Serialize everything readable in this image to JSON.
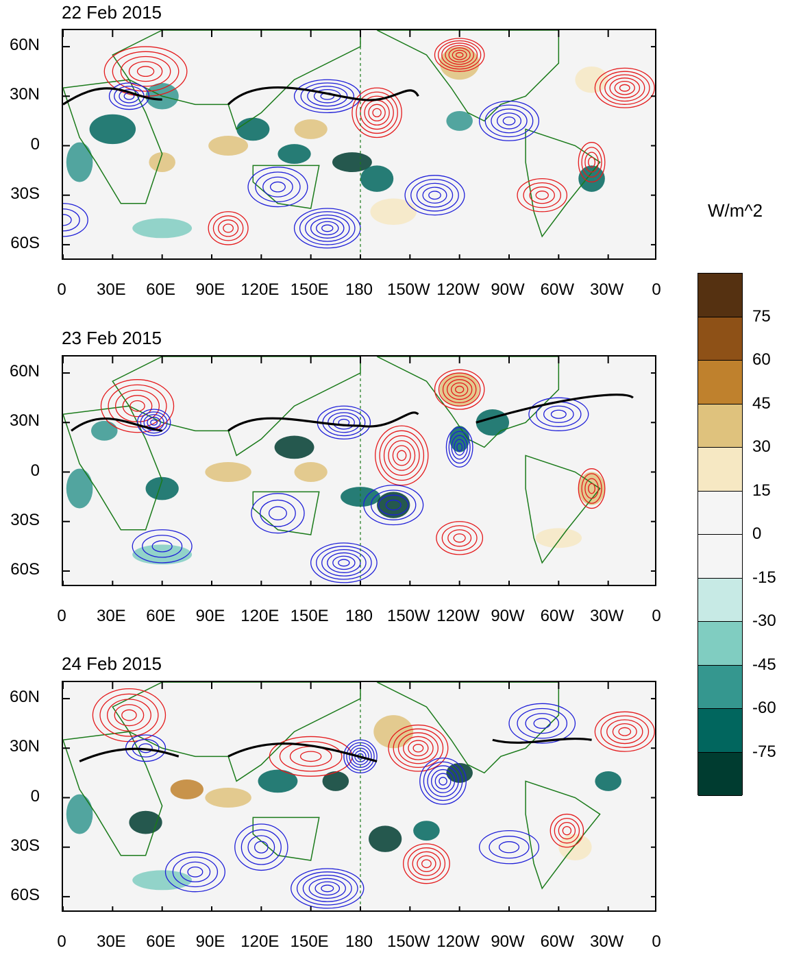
{
  "panels": [
    {
      "title": "22 Feb 2015"
    },
    {
      "title": "23 Feb 2015"
    },
    {
      "title": "24 Feb 2015"
    }
  ],
  "axes": {
    "lat_labels": [
      "60N",
      "30N",
      "0",
      "30S",
      "60S"
    ],
    "lon_labels": [
      "0",
      "30E",
      "60E",
      "90E",
      "120E",
      "150E",
      "180",
      "150W",
      "120W",
      "90W",
      "60W",
      "30W",
      "0"
    ]
  },
  "colorbar": {
    "units": "W/m^2",
    "labels": [
      "75",
      "60",
      "45",
      "30",
      "15",
      "0",
      "-15",
      "-30",
      "-45",
      "-60",
      "-75"
    ],
    "colors": [
      "#553111",
      "#8e5117",
      "#bf812d",
      "#dfc27d",
      "#f6e8c3",
      "#f5f5f5",
      "#f5f5f5",
      "#c7eae5",
      "#80cdc1",
      "#35978f",
      "#01665e",
      "#003c30"
    ]
  },
  "contour_colors": {
    "positive": "#e41a1c",
    "negative": "#1f1fd8",
    "jet": "#000000",
    "coast": "#1a7a1a"
  }
}
